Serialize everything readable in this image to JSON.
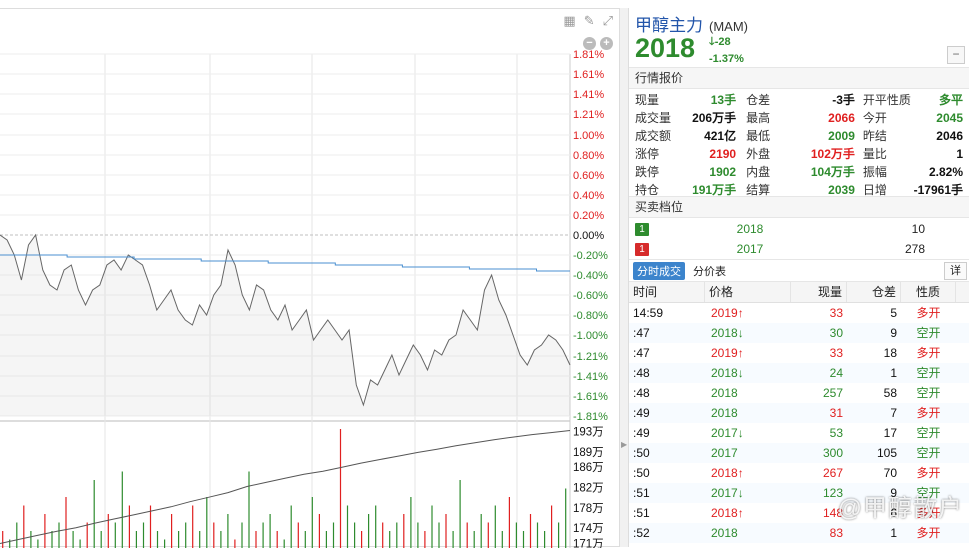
{
  "chart": {
    "pct_labels": [
      {
        "text": "1.81%",
        "color": "red"
      },
      {
        "text": "1.61%",
        "color": "red"
      },
      {
        "text": "1.41%",
        "color": "red"
      },
      {
        "text": "1.21%",
        "color": "red"
      },
      {
        "text": "1.00%",
        "color": "red"
      },
      {
        "text": "0.80%",
        "color": "red"
      },
      {
        "text": "0.60%",
        "color": "red"
      },
      {
        "text": "0.40%",
        "color": "red"
      },
      {
        "text": "0.20%",
        "color": "red"
      },
      {
        "text": "0.00%",
        "color": "black"
      },
      {
        "text": "-0.20%",
        "color": "green"
      },
      {
        "text": "-0.40%",
        "color": "green"
      },
      {
        "text": "-0.60%",
        "color": "green"
      },
      {
        "text": "-0.80%",
        "color": "green"
      },
      {
        "text": "-1.00%",
        "color": "green"
      },
      {
        "text": "-1.21%",
        "color": "green"
      },
      {
        "text": "-1.41%",
        "color": "green"
      },
      {
        "text": "-1.61%",
        "color": "green"
      },
      {
        "text": "-1.81%",
        "color": "green"
      }
    ],
    "oi_labels": [
      "193万",
      "189万",
      "186万",
      "182万",
      "178万",
      "174万",
      "171万"
    ],
    "price_pct_series": [
      -0.0,
      -0.05,
      -0.2,
      -0.45,
      -0.1,
      0.0,
      -0.35,
      -0.5,
      -0.55,
      -0.35,
      -0.3,
      -0.55,
      -0.7,
      -0.55,
      -0.5,
      -0.3,
      -0.25,
      -0.35,
      -0.2,
      -0.25,
      -0.3,
      -0.5,
      -0.75,
      -0.65,
      -0.55,
      -0.75,
      -0.85,
      -0.9,
      -0.7,
      -0.8,
      -0.6,
      -0.5,
      -0.15,
      -0.3,
      -0.6,
      -0.75,
      -0.5,
      -0.55,
      -0.75,
      -0.85,
      -0.7,
      -0.95,
      -0.85,
      -0.75,
      -1.05,
      -0.95,
      -0.85,
      -0.95,
      -1.05,
      -0.95,
      -1.5,
      -1.7,
      -1.45,
      -1.5,
      -1.35,
      -1.2,
      -1.4,
      -1.25,
      -1.1,
      -1.2,
      -1.35,
      -1.15,
      -1.2,
      -1.05,
      -1.0,
      -0.75,
      -0.85,
      -0.95,
      -0.55,
      -0.4,
      -0.65,
      -0.8,
      -1.0,
      -1.2,
      -1.3,
      -1.15,
      -1.1,
      -1.0,
      -1.05,
      -1.15,
      -1.3
    ],
    "avg_pct_series": [
      -0.2,
      -0.2,
      -0.22,
      -0.22,
      -0.24,
      -0.24,
      -0.26,
      -0.26,
      -0.28,
      -0.28,
      -0.3,
      -0.3,
      -0.32,
      -0.32,
      -0.34,
      -0.34,
      -0.36
    ],
    "oi_series": [
      171,
      171.8,
      172.6,
      173.4,
      174.1,
      175.0,
      175.8,
      176.6,
      177.4,
      178.2,
      179.2,
      180.1,
      181.0,
      182.2,
      183.0,
      183.8,
      184.6,
      185.2,
      186.0,
      186.8,
      187.5,
      188.2,
      188.9,
      189.5,
      190.2,
      190.8,
      191.4,
      191.9,
      192.4,
      192.8,
      193.2
    ],
    "volume_series": [
      2,
      1,
      3,
      5,
      2,
      1,
      4,
      2,
      3,
      6,
      2,
      1,
      3,
      8,
      2,
      4,
      3,
      9,
      5,
      2,
      3,
      5,
      2,
      1,
      4,
      2,
      3,
      5,
      2,
      6,
      3,
      2,
      4,
      1,
      3,
      9,
      2,
      3,
      4,
      2,
      1,
      5,
      3,
      2,
      6,
      4,
      2,
      3,
      14,
      5,
      3,
      2,
      4,
      5,
      3,
      2,
      3,
      4,
      6,
      3,
      2,
      5,
      3,
      4,
      2,
      8,
      3,
      2,
      4,
      3,
      5,
      2,
      6,
      3,
      2,
      4,
      3,
      2,
      5,
      3,
      7
    ]
  },
  "toolbar": {
    "grid_icon": "▦",
    "pen_icon": "✎",
    "expand_icon": "⤢",
    "zoom_out": "−",
    "zoom_in": "+"
  },
  "quote": {
    "name": "甲醇主力",
    "code": "(MAM)",
    "price": "2018",
    "change": "-28",
    "change_pct": "-1.37%",
    "collapse": "−",
    "section_market": "行情报价",
    "stats": [
      [
        {
          "l": "现量",
          "v": "13手",
          "c": "green"
        },
        {
          "l": "仓差",
          "v": "-3手",
          "c": "blk"
        },
        {
          "l": "开平性质",
          "v": "多平",
          "c": "green"
        }
      ],
      [
        {
          "l": "成交量",
          "v": "206万手",
          "c": "blk"
        },
        {
          "l": "最高",
          "v": "2066",
          "c": "red"
        },
        {
          "l": "今开",
          "v": "2045",
          "c": "green"
        }
      ],
      [
        {
          "l": "成交额",
          "v": "421亿",
          "c": "blk"
        },
        {
          "l": "最低",
          "v": "2009",
          "c": "green"
        },
        {
          "l": "昨结",
          "v": "2046",
          "c": "blk"
        }
      ],
      [
        {
          "l": "涨停",
          "v": "2190",
          "c": "red"
        },
        {
          "l": "外盘",
          "v": "102万手",
          "c": "red"
        },
        {
          "l": "量比",
          "v": "1",
          "c": "blk"
        }
      ],
      [
        {
          "l": "跌停",
          "v": "1902",
          "c": "green"
        },
        {
          "l": "内盘",
          "v": "104万手",
          "c": "green"
        },
        {
          "l": "振幅",
          "v": "2.82%",
          "c": "blk"
        }
      ],
      [
        {
          "l": "持仓",
          "v": "191万手",
          "c": "green"
        },
        {
          "l": "结算",
          "v": "2039",
          "c": "green"
        },
        {
          "l": "日增",
          "v": "-17961手",
          "c": "blk"
        }
      ]
    ],
    "section_orders": "买卖档位",
    "orders": [
      {
        "level": "1",
        "side": "buy",
        "price": "2018",
        "vol": "10"
      },
      {
        "level": "1",
        "side": "sell",
        "price": "2017",
        "vol": "278"
      }
    ],
    "tab_active": "分时成交",
    "tab_other": "分价表",
    "detail_btn": "详",
    "tick_headers": [
      "时间",
      "价格",
      "现量",
      "仓差",
      "性质"
    ],
    "ticks": [
      {
        "time": "14:59",
        "price": "2019",
        "dir": "up",
        "vol": "33",
        "oi": "5",
        "nat": "多开"
      },
      {
        "time": ":47",
        "price": "2018",
        "dir": "down",
        "vol": "30",
        "oi": "9",
        "nat": "空开"
      },
      {
        "time": ":47",
        "price": "2019",
        "dir": "up",
        "vol": "33",
        "oi": "18",
        "nat": "多开"
      },
      {
        "time": ":48",
        "price": "2018",
        "dir": "down",
        "vol": "24",
        "oi": "1",
        "nat": "空开"
      },
      {
        "time": ":48",
        "price": "2018",
        "dir": "",
        "vol": "257",
        "oi": "58",
        "nat": "空开"
      },
      {
        "time": ":49",
        "price": "2018",
        "dir": "",
        "vol": "31",
        "oi": "7",
        "nat": "多开"
      },
      {
        "time": ":49",
        "price": "2017",
        "dir": "down",
        "vol": "53",
        "oi": "17",
        "nat": "空开"
      },
      {
        "time": ":50",
        "price": "2017",
        "dir": "",
        "vol": "300",
        "oi": "105",
        "nat": "空开"
      },
      {
        "time": ":50",
        "price": "2018",
        "dir": "up",
        "vol": "267",
        "oi": "70",
        "nat": "多开"
      },
      {
        "time": ":51",
        "price": "2017",
        "dir": "down",
        "vol": "123",
        "oi": "9",
        "nat": "空开"
      },
      {
        "time": ":51",
        "price": "2018",
        "dir": "up",
        "vol": "148",
        "oi": "6",
        "nat": "多开"
      },
      {
        "time": ":52",
        "price": "2018",
        "dir": "",
        "vol": "83",
        "oi": "1",
        "nat": "多开"
      }
    ],
    "watermark": "@甲醇散户"
  },
  "colors": {
    "red": "#e02020",
    "green": "#2e8b2e",
    "avg_line": "#4a8fd0",
    "price_line": "#666666",
    "oi_line": "#555555"
  }
}
